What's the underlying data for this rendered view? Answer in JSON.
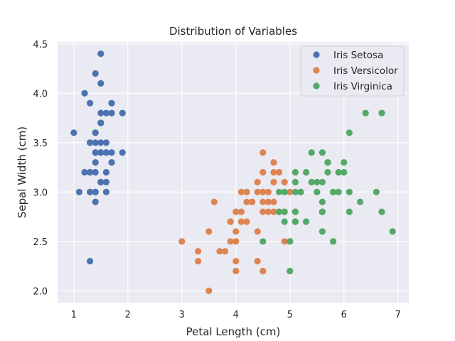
{
  "chart_data": {
    "type": "scatter",
    "title": "Distribution of Variables",
    "xlabel": "Petal Length (cm)",
    "ylabel": "Sepal Width (cm)",
    "xlim": [
      0.7,
      7.2
    ],
    "ylim": [
      1.88,
      4.52
    ],
    "xticks": [
      1,
      2,
      3,
      4,
      5,
      6,
      7
    ],
    "xtick_labels": [
      "1",
      "2",
      "3",
      "4",
      "5",
      "6",
      "7"
    ],
    "yticks": [
      2.0,
      2.5,
      3.0,
      3.5,
      4.0,
      4.5
    ],
    "ytick_labels": [
      "2.0",
      "2.5",
      "3.0",
      "3.5",
      "4.0",
      "4.5"
    ],
    "grid": true,
    "legend_position": "top-right",
    "series": [
      {
        "name": "Iris Setosa",
        "color": "#4c72b0",
        "points": [
          [
            1.4,
            3.5
          ],
          [
            1.4,
            3.0
          ],
          [
            1.3,
            3.2
          ],
          [
            1.5,
            3.1
          ],
          [
            1.4,
            3.6
          ],
          [
            1.7,
            3.9
          ],
          [
            1.4,
            3.4
          ],
          [
            1.5,
            3.4
          ],
          [
            1.4,
            2.9
          ],
          [
            1.5,
            3.1
          ],
          [
            1.5,
            3.7
          ],
          [
            1.6,
            3.4
          ],
          [
            1.4,
            3.0
          ],
          [
            1.1,
            3.0
          ],
          [
            1.2,
            4.0
          ],
          [
            1.5,
            4.4
          ],
          [
            1.3,
            3.9
          ],
          [
            1.4,
            3.5
          ],
          [
            1.7,
            3.8
          ],
          [
            1.5,
            3.8
          ],
          [
            1.7,
            3.4
          ],
          [
            1.5,
            3.7
          ],
          [
            1.0,
            3.6
          ],
          [
            1.7,
            3.3
          ],
          [
            1.9,
            3.4
          ],
          [
            1.6,
            3.0
          ],
          [
            1.6,
            3.4
          ],
          [
            1.5,
            3.5
          ],
          [
            1.4,
            3.4
          ],
          [
            1.6,
            3.2
          ],
          [
            1.6,
            3.1
          ],
          [
            1.5,
            3.4
          ],
          [
            1.5,
            4.1
          ],
          [
            1.4,
            4.2
          ],
          [
            1.5,
            3.1
          ],
          [
            1.2,
            3.2
          ],
          [
            1.3,
            3.5
          ],
          [
            1.4,
            3.6
          ],
          [
            1.3,
            3.0
          ],
          [
            1.5,
            3.4
          ],
          [
            1.3,
            3.5
          ],
          [
            1.3,
            2.3
          ],
          [
            1.3,
            3.2
          ],
          [
            1.6,
            3.5
          ],
          [
            1.9,
            3.8
          ],
          [
            1.4,
            3.0
          ],
          [
            1.6,
            3.8
          ],
          [
            1.4,
            3.2
          ],
          [
            1.5,
            3.7
          ],
          [
            1.4,
            3.3
          ]
        ]
      },
      {
        "name": "Iris Versicolor",
        "color": "#dd8452",
        "points": [
          [
            4.7,
            3.2
          ],
          [
            4.5,
            3.2
          ],
          [
            4.9,
            3.1
          ],
          [
            4.0,
            2.3
          ],
          [
            4.6,
            2.8
          ],
          [
            4.5,
            2.8
          ],
          [
            4.7,
            3.3
          ],
          [
            3.3,
            2.4
          ],
          [
            4.6,
            2.9
          ],
          [
            3.9,
            2.7
          ],
          [
            3.5,
            2.0
          ],
          [
            4.2,
            3.0
          ],
          [
            4.0,
            2.2
          ],
          [
            4.7,
            2.9
          ],
          [
            3.6,
            2.9
          ],
          [
            4.4,
            3.1
          ],
          [
            4.5,
            3.0
          ],
          [
            4.1,
            2.7
          ],
          [
            4.5,
            2.2
          ],
          [
            3.9,
            2.5
          ],
          [
            4.8,
            3.2
          ],
          [
            4.0,
            2.8
          ],
          [
            4.9,
            2.5
          ],
          [
            4.7,
            2.8
          ],
          [
            4.3,
            2.9
          ],
          [
            4.4,
            3.0
          ],
          [
            4.8,
            2.8
          ],
          [
            5.0,
            3.0
          ],
          [
            4.5,
            2.9
          ],
          [
            3.5,
            2.6
          ],
          [
            3.8,
            2.4
          ],
          [
            3.7,
            2.4
          ],
          [
            3.9,
            2.7
          ],
          [
            5.1,
            2.7
          ],
          [
            4.5,
            3.0
          ],
          [
            4.5,
            3.4
          ],
          [
            4.7,
            3.1
          ],
          [
            4.4,
            2.3
          ],
          [
            4.1,
            3.0
          ],
          [
            4.0,
            2.5
          ],
          [
            4.4,
            2.6
          ],
          [
            4.6,
            3.0
          ],
          [
            4.0,
            2.6
          ],
          [
            3.3,
            2.3
          ],
          [
            4.2,
            2.7
          ],
          [
            4.2,
            3.0
          ],
          [
            4.2,
            2.9
          ],
          [
            4.3,
            2.9
          ],
          [
            3.0,
            2.5
          ],
          [
            4.1,
            2.8
          ]
        ]
      },
      {
        "name": "Iris Virginica",
        "color": "#55a868",
        "points": [
          [
            6.0,
            3.3
          ],
          [
            5.1,
            2.7
          ],
          [
            5.9,
            3.0
          ],
          [
            5.6,
            2.9
          ],
          [
            5.8,
            3.0
          ],
          [
            6.6,
            3.0
          ],
          [
            4.5,
            2.5
          ],
          [
            6.3,
            2.9
          ],
          [
            5.8,
            2.5
          ],
          [
            6.1,
            3.6
          ],
          [
            5.1,
            3.2
          ],
          [
            5.3,
            2.7
          ],
          [
            5.5,
            3.0
          ],
          [
            5.0,
            2.5
          ],
          [
            5.1,
            2.8
          ],
          [
            5.3,
            3.2
          ],
          [
            5.5,
            3.0
          ],
          [
            6.7,
            3.8
          ],
          [
            6.9,
            2.6
          ],
          [
            5.0,
            2.2
          ],
          [
            5.7,
            3.2
          ],
          [
            4.9,
            2.8
          ],
          [
            6.7,
            2.8
          ],
          [
            4.9,
            2.7
          ],
          [
            5.7,
            3.3
          ],
          [
            6.0,
            3.2
          ],
          [
            4.8,
            2.8
          ],
          [
            4.9,
            3.0
          ],
          [
            5.6,
            2.8
          ],
          [
            5.8,
            3.0
          ],
          [
            6.1,
            2.8
          ],
          [
            6.4,
            3.8
          ],
          [
            5.6,
            2.8
          ],
          [
            5.1,
            2.8
          ],
          [
            5.6,
            2.6
          ],
          [
            6.1,
            3.0
          ],
          [
            5.6,
            3.4
          ],
          [
            5.5,
            3.1
          ],
          [
            4.8,
            3.0
          ],
          [
            5.4,
            3.1
          ],
          [
            5.6,
            3.1
          ],
          [
            5.1,
            3.1
          ],
          [
            5.1,
            2.7
          ],
          [
            5.9,
            3.2
          ],
          [
            5.7,
            3.3
          ],
          [
            5.2,
            3.0
          ],
          [
            5.0,
            2.5
          ],
          [
            5.2,
            3.0
          ],
          [
            5.4,
            3.4
          ],
          [
            5.1,
            3.0
          ]
        ]
      }
    ]
  }
}
